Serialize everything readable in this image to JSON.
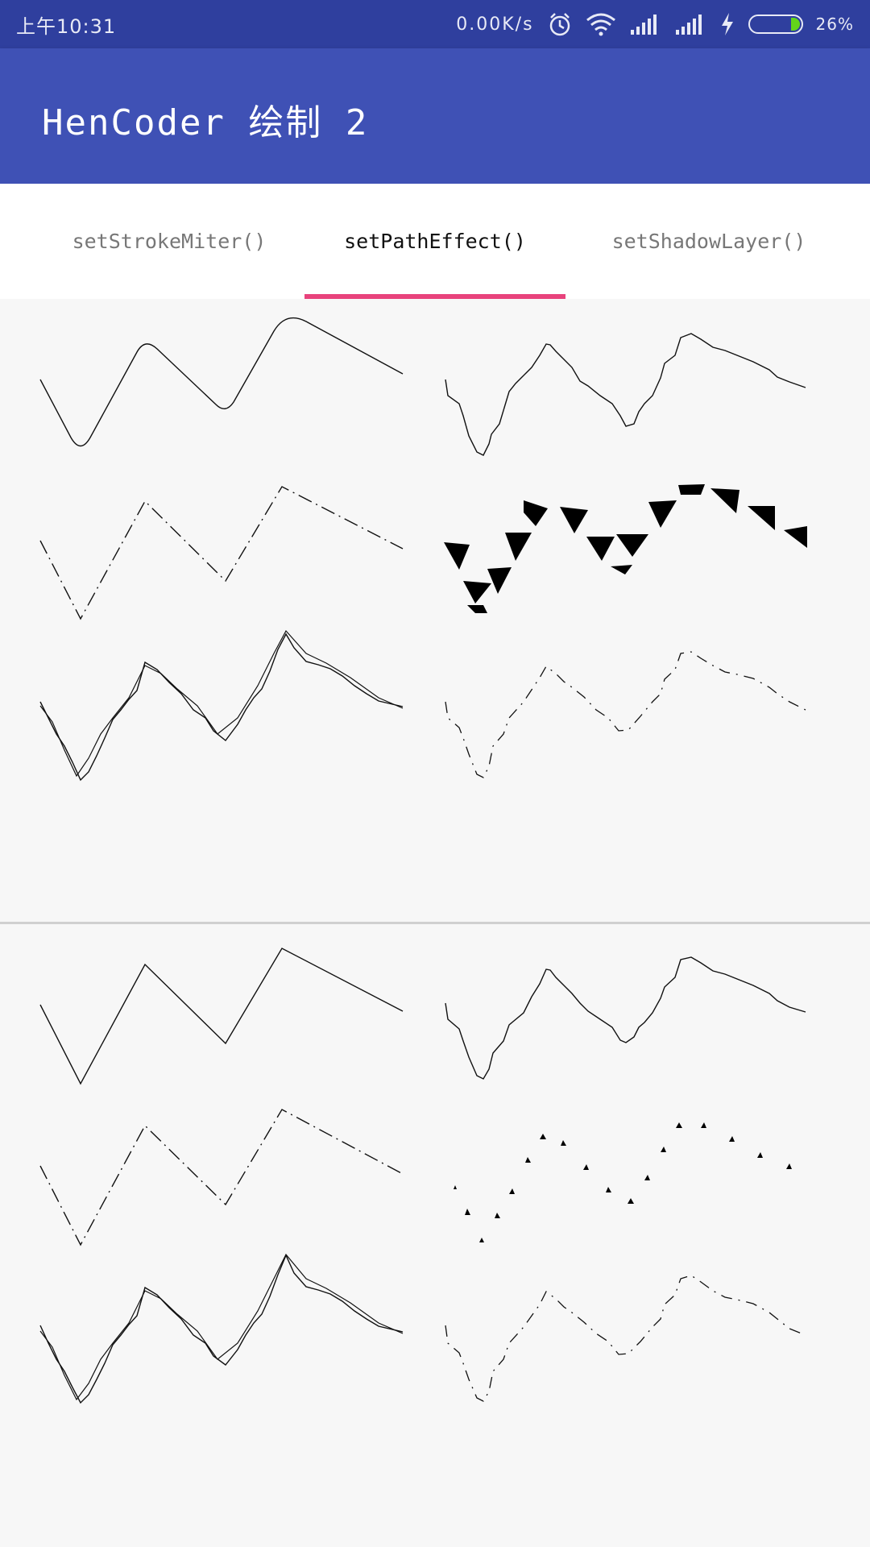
{
  "status_bar": {
    "time": "上午10:31",
    "network_speed": "0.00K/s",
    "battery_percent": "26%",
    "battery_level": 0.26,
    "icons": [
      "alarm-icon",
      "wifi-icon",
      "signal-icon",
      "signal-icon",
      "charging-icon",
      "battery-icon"
    ]
  },
  "app_bar": {
    "title": "HenCoder 绘制 2",
    "color": "#3f51b5"
  },
  "tabs": [
    {
      "label": "setStrokeMiter()",
      "selected": false
    },
    {
      "label": "setPathEffect()",
      "selected": true
    },
    {
      "label": "setShadowLayer()",
      "selected": false
    }
  ],
  "colors": {
    "indicator": "#e8437c",
    "status_bar": "#2f3f9e",
    "battery_fill": "#63d51a"
  }
}
